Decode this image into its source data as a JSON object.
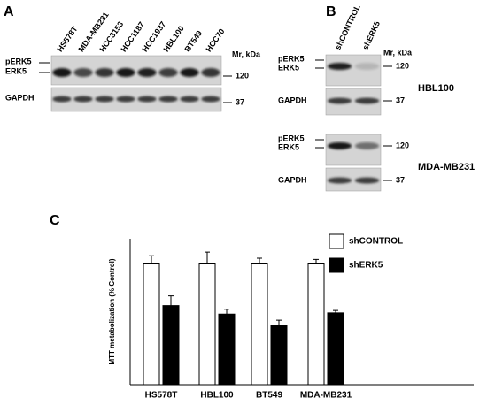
{
  "panels": {
    "a": {
      "label": "A",
      "lanes": [
        "HS578T",
        "MDA-MB231",
        "HCC3153",
        "HCC1187",
        "HCC1937",
        "HBL100",
        "BT549",
        "HCC70"
      ],
      "unit": "Mr, kDa",
      "bands": [
        "pERK5",
        "ERK5",
        "GAPDH"
      ],
      "markers": [
        120,
        37
      ]
    },
    "b": {
      "label": "B",
      "lanes": [
        "shCONTROL",
        "shERK5"
      ],
      "unit": "Mr, kDa",
      "blots": [
        {
          "cell_line": "HBL100",
          "bands": [
            "pERK5",
            "ERK5",
            "GAPDH"
          ],
          "markers": [
            120,
            37
          ]
        },
        {
          "cell_line": "MDA-MB231",
          "bands": [
            "pERK5",
            "ERK5",
            "GAPDH"
          ],
          "markers": [
            120,
            37
          ]
        }
      ]
    },
    "c": {
      "label": "C"
    }
  },
  "chart_data": {
    "type": "bar",
    "y_label": "MTT metabolization (% Control)",
    "categories": [
      "HS578T",
      "HBL100",
      "BT549",
      "MDA-MB231"
    ],
    "series": [
      {
        "name": "shCONTROL",
        "color": "#ffffff",
        "values": [
          100,
          100,
          100,
          100
        ],
        "errors": [
          6,
          9,
          4,
          3
        ]
      },
      {
        "name": "shERK5",
        "color": "#000000",
        "values": [
          65,
          58,
          49,
          59
        ],
        "errors": [
          8,
          4,
          4,
          2
        ]
      }
    ],
    "ylim": [
      0,
      120
    ],
    "legend": "upper-right"
  }
}
